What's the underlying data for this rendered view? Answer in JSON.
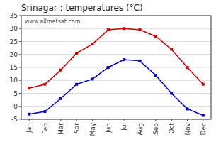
{
  "chart_data": {
    "type": "line",
    "title": "Srinagar : temperatures (°C)",
    "categories": [
      "Jan",
      "Feb",
      "Mar",
      "Apr",
      "May",
      "Jun",
      "Jul",
      "Aug",
      "Sep",
      "Oct",
      "Nov",
      "Dec"
    ],
    "series": [
      {
        "color": "#cc0000",
        "marker": "square",
        "line_style": "solid",
        "values": [
          7,
          8.5,
          14,
          20.5,
          24,
          29.5,
          30,
          29.5,
          27,
          22,
          15,
          8.5
        ]
      },
      {
        "color": "#0000cc",
        "marker": "square",
        "line_style": "solid",
        "values": [
          -3,
          -2,
          3,
          8.5,
          10.5,
          15,
          18,
          17.5,
          12,
          5,
          -1,
          -3.5
        ]
      }
    ],
    "ylim": [
      -5,
      35
    ],
    "yticks": [
      -5,
      0,
      5,
      10,
      15,
      20,
      25,
      30,
      35
    ],
    "grid": true,
    "annotations": [
      "www.allmetsat.com"
    ]
  }
}
